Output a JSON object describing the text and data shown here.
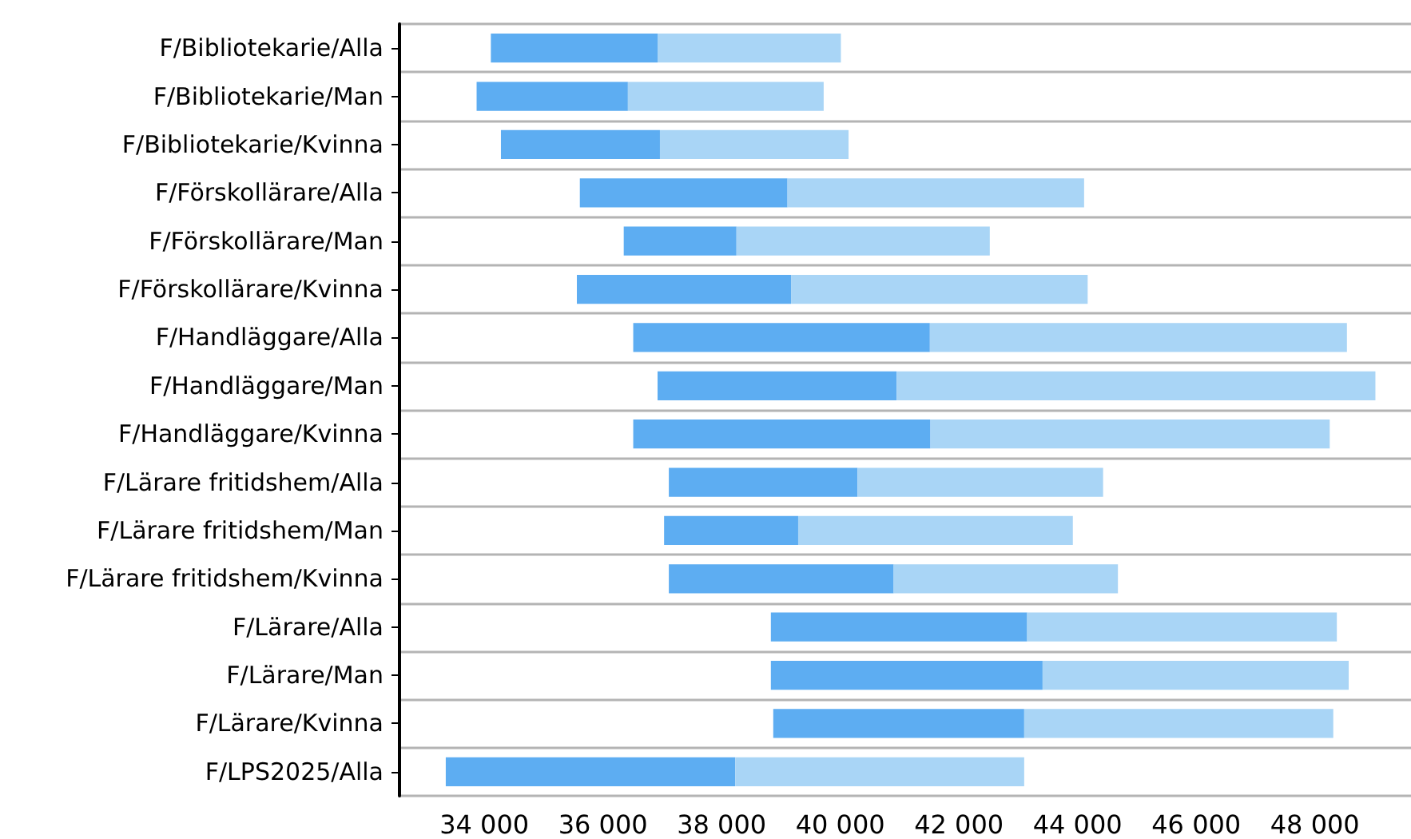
{
  "chart_data": {
    "type": "bar",
    "orientation": "horizontal",
    "grid": "y",
    "categories": [
      "F/Bibliotekarie/Alla",
      "F/Bibliotekarie/Man",
      "F/Bibliotekarie/Kvinna",
      "F/Förskollärare/Alla",
      "F/Förskollärare/Man",
      "F/Förskollärare/Kvinna",
      "F/Handläggare/Alla",
      "F/Handläggare/Man",
      "F/Handläggare/Kvinna",
      "F/Lärare fritidshem/Alla",
      "F/Lärare fritidshem/Man",
      "F/Lärare fritidshem/Kvinna",
      "F/Lärare/Alla",
      "F/Lärare/Man",
      "F/Lärare/Kvinna",
      "F/LPS2025/Alla"
    ],
    "series": [
      {
        "color": "#5dadf2",
        "base": [
          34110,
          33870,
          34280,
          35610,
          36350,
          35560,
          36510,
          36920,
          36510,
          37110,
          37030,
          37110,
          38830,
          38830,
          38870,
          33350
        ],
        "values": [
          2810,
          2550,
          2680,
          3500,
          1900,
          3610,
          5000,
          4030,
          5010,
          3180,
          2260,
          3790,
          4320,
          4580,
          4230,
          4880
        ]
      },
      {
        "color": "#a9d5f6",
        "base": [
          36920,
          36420,
          36960,
          39110,
          38250,
          39170,
          41510,
          40950,
          41520,
          40290,
          39290,
          40900,
          43150,
          43410,
          43100,
          38230
        ],
        "values": [
          3090,
          3300,
          3180,
          5000,
          4270,
          5000,
          7030,
          8070,
          6730,
          4140,
          4630,
          3780,
          5220,
          5160,
          5210,
          4870
        ]
      }
    ],
    "xlim": [
      32570,
      49620
    ],
    "xticks": [
      {
        "value": 34000,
        "label": "34 000"
      },
      {
        "value": 36000,
        "label": "36 000"
      },
      {
        "value": 38000,
        "label": "38 000"
      },
      {
        "value": 40000,
        "label": "40 000"
      },
      {
        "value": 42000,
        "label": "42 000"
      },
      {
        "value": 44000,
        "label": "44 000"
      },
      {
        "value": 46000,
        "label": "46 000"
      },
      {
        "value": 48000,
        "label": "48 000"
      }
    ]
  }
}
